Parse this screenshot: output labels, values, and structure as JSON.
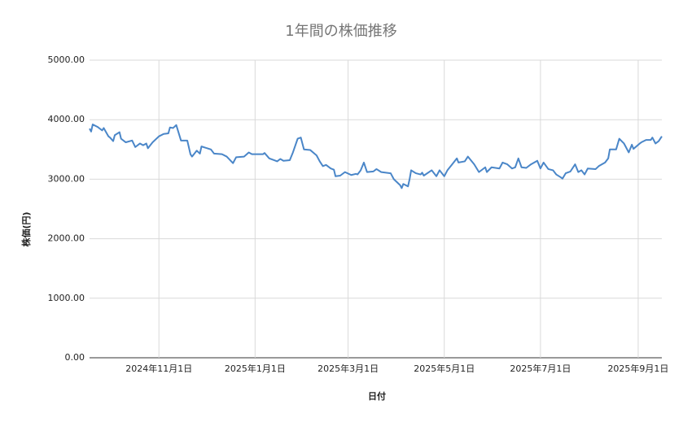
{
  "chart_data": {
    "type": "line",
    "title": "1年間の株価推移",
    "x_label": "日付",
    "y_label": "株価(円)",
    "color": "#4a86c8",
    "grid": true,
    "xlim": [
      "2024-09-18",
      "2025-09-16"
    ],
    "xticks": [
      {
        "value": "2024-11-01",
        "label": "2024年11月1日"
      },
      {
        "value": "2025-01-01",
        "label": "2025年1月1日"
      },
      {
        "value": "2025-03-01",
        "label": "2025年3月1日"
      },
      {
        "value": "2025-05-01",
        "label": "2025年5月1日"
      },
      {
        "value": "2025-07-01",
        "label": "2025年7月1日"
      },
      {
        "value": "2025-09-01",
        "label": "2025年9月1日"
      }
    ],
    "ylim": [
      0,
      5000
    ],
    "yticks": [
      {
        "value": 0,
        "label": "0.00"
      },
      {
        "value": 1000,
        "label": "1000.00"
      },
      {
        "value": 2000,
        "label": "2000.00"
      },
      {
        "value": 3000,
        "label": "3000.00"
      },
      {
        "value": 4000,
        "label": "4000.00"
      },
      {
        "value": 5000,
        "label": "5000.00"
      }
    ],
    "x": [
      "2024-09-18",
      "2024-09-19",
      "2024-09-20",
      "2024-09-23",
      "2024-09-26",
      "2024-09-27",
      "2024-09-30",
      "2024-10-01",
      "2024-10-03",
      "2024-10-04",
      "2024-10-07",
      "2024-10-08",
      "2024-10-11",
      "2024-10-15",
      "2024-10-17",
      "2024-10-20",
      "2024-10-22",
      "2024-10-24",
      "2024-10-25",
      "2024-10-28",
      "2024-11-01",
      "2024-11-04",
      "2024-11-07",
      "2024-11-08",
      "2024-11-10",
      "2024-11-12",
      "2024-11-15",
      "2024-11-19",
      "2024-11-21",
      "2024-11-22",
      "2024-11-25",
      "2024-11-27",
      "2024-11-28",
      "2024-12-04",
      "2024-12-06",
      "2024-12-11",
      "2024-12-14",
      "2024-12-18",
      "2024-12-20",
      "2024-12-25",
      "2024-12-28",
      "2024-12-30",
      "2025-01-06",
      "2025-01-07",
      "2025-01-10",
      "2025-01-13",
      "2025-01-15",
      "2025-01-17",
      "2025-01-19",
      "2025-01-23",
      "2025-01-25",
      "2025-01-28",
      "2025-01-30",
      "2025-02-01",
      "2025-02-05",
      "2025-02-09",
      "2025-02-11",
      "2025-02-13",
      "2025-02-15",
      "2025-02-18",
      "2025-02-20",
      "2025-02-21",
      "2025-02-24",
      "2025-02-27",
      "2025-03-03",
      "2025-03-06",
      "2025-03-07",
      "2025-03-09",
      "2025-03-11",
      "2025-03-13",
      "2025-03-17",
      "2025-03-19",
      "2025-03-22",
      "2025-03-28",
      "2025-03-30",
      "2025-04-03",
      "2025-04-04",
      "2025-04-05",
      "2025-04-08",
      "2025-04-09",
      "2025-04-10",
      "2025-04-13",
      "2025-04-16",
      "2025-04-17",
      "2025-04-18",
      "2025-04-23",
      "2025-04-26",
      "2025-04-28",
      "2025-05-01",
      "2025-05-03",
      "2025-05-06",
      "2025-05-09",
      "2025-05-10",
      "2025-05-14",
      "2025-05-16",
      "2025-05-20",
      "2025-05-23",
      "2025-05-27",
      "2025-05-28",
      "2025-05-31",
      "2025-06-05",
      "2025-06-07",
      "2025-06-10",
      "2025-06-13",
      "2025-06-15",
      "2025-06-17",
      "2025-06-19",
      "2025-06-22",
      "2025-06-25",
      "2025-06-29",
      "2025-07-01",
      "2025-07-03",
      "2025-07-06",
      "2025-07-09",
      "2025-07-11",
      "2025-07-14",
      "2025-07-15",
      "2025-07-17",
      "2025-07-20",
      "2025-07-23",
      "2025-07-25",
      "2025-07-27",
      "2025-07-29",
      "2025-07-31",
      "2025-08-05",
      "2025-08-07",
      "2025-08-11",
      "2025-08-13",
      "2025-08-14",
      "2025-08-18",
      "2025-08-20",
      "2025-08-23",
      "2025-08-24",
      "2025-08-26",
      "2025-08-28",
      "2025-08-29",
      "2025-09-02",
      "2025-09-03",
      "2025-09-06",
      "2025-09-09",
      "2025-09-10",
      "2025-09-12",
      "2025-09-14",
      "2025-09-16"
    ],
    "values": [
      3850,
      3800,
      3920,
      3880,
      3820,
      3860,
      3720,
      3700,
      3640,
      3740,
      3790,
      3680,
      3620,
      3650,
      3540,
      3600,
      3570,
      3600,
      3520,
      3620,
      3720,
      3760,
      3770,
      3870,
      3860,
      3910,
      3650,
      3650,
      3420,
      3380,
      3480,
      3430,
      3550,
      3500,
      3430,
      3420,
      3380,
      3270,
      3370,
      3380,
      3450,
      3420,
      3420,
      3440,
      3350,
      3320,
      3300,
      3340,
      3310,
      3320,
      3450,
      3680,
      3700,
      3500,
      3490,
      3400,
      3300,
      3220,
      3240,
      3180,
      3160,
      3050,
      3060,
      3120,
      3070,
      3090,
      3080,
      3150,
      3280,
      3120,
      3130,
      3170,
      3120,
      3100,
      3000,
      2900,
      2850,
      2920,
      2880,
      3000,
      3150,
      3100,
      3080,
      3110,
      3060,
      3150,
      3050,
      3150,
      3050,
      3150,
      3250,
      3350,
      3280,
      3300,
      3380,
      3250,
      3120,
      3200,
      3120,
      3200,
      3180,
      3280,
      3250,
      3180,
      3200,
      3350,
      3200,
      3190,
      3250,
      3310,
      3180,
      3280,
      3170,
      3150,
      3080,
      3030,
      3010,
      3100,
      3130,
      3250,
      3120,
      3150,
      3080,
      3180,
      3170,
      3220,
      3280,
      3350,
      3500,
      3500,
      3680,
      3600,
      3550,
      3450,
      3580,
      3510,
      3600,
      3620,
      3660,
      3660,
      3700,
      3600,
      3640,
      3720
    ]
  }
}
